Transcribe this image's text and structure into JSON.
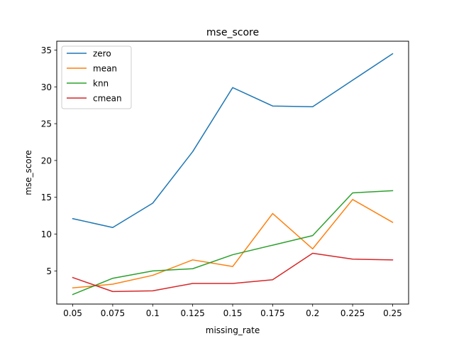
{
  "chart_data": {
    "type": "line",
    "title": "mse_score",
    "xlabel": "missing_rate",
    "ylabel": "mse_score",
    "x": [
      0.05,
      0.075,
      0.1,
      0.125,
      0.15,
      0.175,
      0.2,
      0.225,
      0.25
    ],
    "x_tick_labels": [
      "0.05",
      "0.075",
      "0.1",
      "0.125",
      "0.15",
      "0.175",
      "0.2",
      "0.225",
      "0.25"
    ],
    "y_ticks": [
      5,
      10,
      15,
      20,
      25,
      30,
      35
    ],
    "y_tick_labels": [
      "5",
      "10",
      "15",
      "20",
      "25",
      "30",
      "35"
    ],
    "xlim": [
      0.04,
      0.26
    ],
    "ylim": [
      0.5,
      36.2
    ],
    "grid": false,
    "legend_position": "top-left",
    "series": [
      {
        "name": "zero",
        "color": "#1f77b4",
        "values": [
          12.1,
          10.9,
          14.2,
          21.2,
          29.9,
          27.4,
          27.3,
          30.9,
          34.5
        ]
      },
      {
        "name": "mean",
        "color": "#ff7f0e",
        "values": [
          2.7,
          3.2,
          4.4,
          6.5,
          5.6,
          12.8,
          8.0,
          14.7,
          11.6
        ]
      },
      {
        "name": "knn",
        "color": "#2ca02c",
        "values": [
          1.8,
          4.0,
          5.0,
          5.3,
          7.2,
          8.5,
          9.8,
          15.6,
          15.9
        ]
      },
      {
        "name": "cmean",
        "color": "#d62728",
        "values": [
          4.1,
          2.2,
          2.3,
          3.3,
          3.3,
          3.8,
          7.4,
          6.6,
          6.5
        ]
      }
    ]
  }
}
